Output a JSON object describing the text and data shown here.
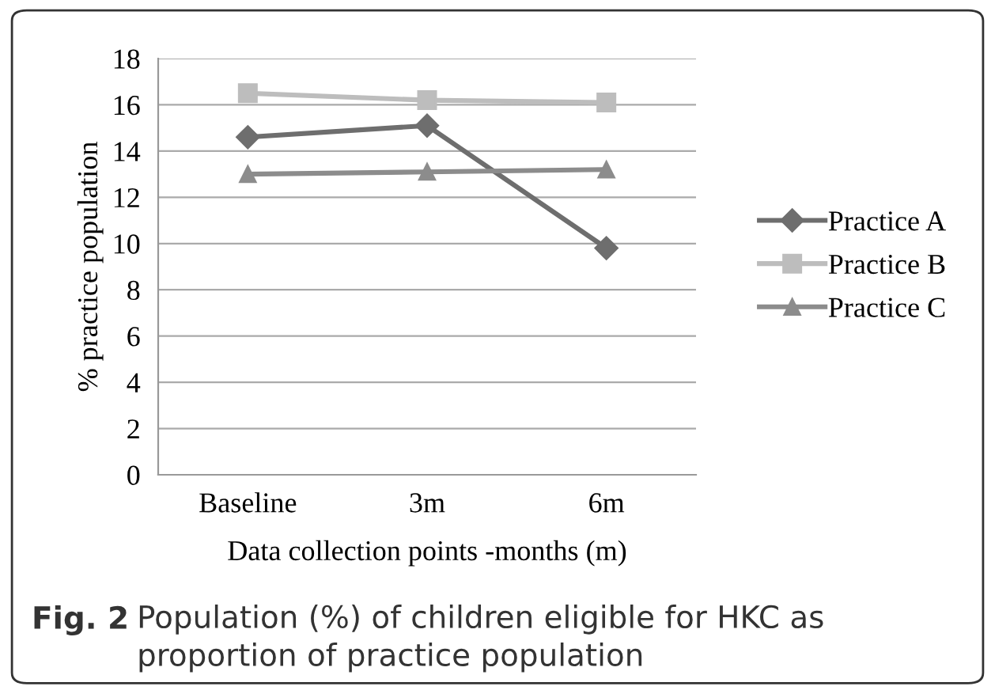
{
  "chart_data": {
    "type": "line",
    "xlabel": "Data collection points -months (m)",
    "ylabel": "% practice population",
    "categories": [
      "Baseline",
      "3m",
      "6m"
    ],
    "series": [
      {
        "name": "Practice A",
        "color": "#6e6e6e",
        "values": [
          14.6,
          15.1,
          9.8
        ],
        "marker": "diamond"
      },
      {
        "name": "Practice B",
        "color": "#bdbdbd",
        "values": [
          16.5,
          16.2,
          16.1
        ],
        "marker": "square"
      },
      {
        "name": "Practice C",
        "color": "#8c8c8c",
        "values": [
          13.0,
          13.1,
          13.2
        ],
        "marker": "triangle"
      }
    ],
    "ylim": [
      0,
      18
    ],
    "yticks": [
      0,
      2,
      4,
      6,
      8,
      10,
      12,
      14,
      16,
      18
    ],
    "grid": "y",
    "legend": "right",
    "line_style": "solid",
    "annotations": [
      "Fig. 2",
      "Population (%) of children eligible for HKC as proportion of practice population"
    ]
  }
}
